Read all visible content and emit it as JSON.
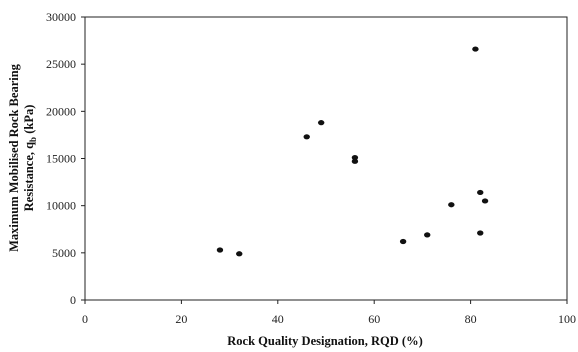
{
  "chart_data": {
    "type": "scatter",
    "title": "",
    "xlabel": "Rock Quality Designation, RQD (%)",
    "ylabel_line1": "Maximum Mobilised Rock Bearing",
    "ylabel_line2_prefix": "Resistance, q",
    "ylabel_line2_subscript": "b",
    "ylabel_line2_suffix": " (kPa)",
    "xlim": [
      0,
      100
    ],
    "ylim": [
      0,
      30000
    ],
    "xticks": [
      0,
      20,
      40,
      60,
      80,
      100
    ],
    "yticks": [
      0,
      5000,
      10000,
      15000,
      20000,
      25000,
      30000
    ],
    "grid": false,
    "legend": "none",
    "colors": {
      "points": "#111111",
      "axes": "#222222"
    },
    "points": [
      {
        "x": 28,
        "y": 5300
      },
      {
        "x": 32,
        "y": 4900
      },
      {
        "x": 46,
        "y": 17300
      },
      {
        "x": 49,
        "y": 18800
      },
      {
        "x": 56,
        "y": 15100
      },
      {
        "x": 56,
        "y": 14700
      },
      {
        "x": 66,
        "y": 6200
      },
      {
        "x": 71,
        "y": 6900
      },
      {
        "x": 76,
        "y": 10100
      },
      {
        "x": 81,
        "y": 26600
      },
      {
        "x": 82,
        "y": 11400
      },
      {
        "x": 83,
        "y": 10500
      },
      {
        "x": 82,
        "y": 7100
      }
    ]
  }
}
